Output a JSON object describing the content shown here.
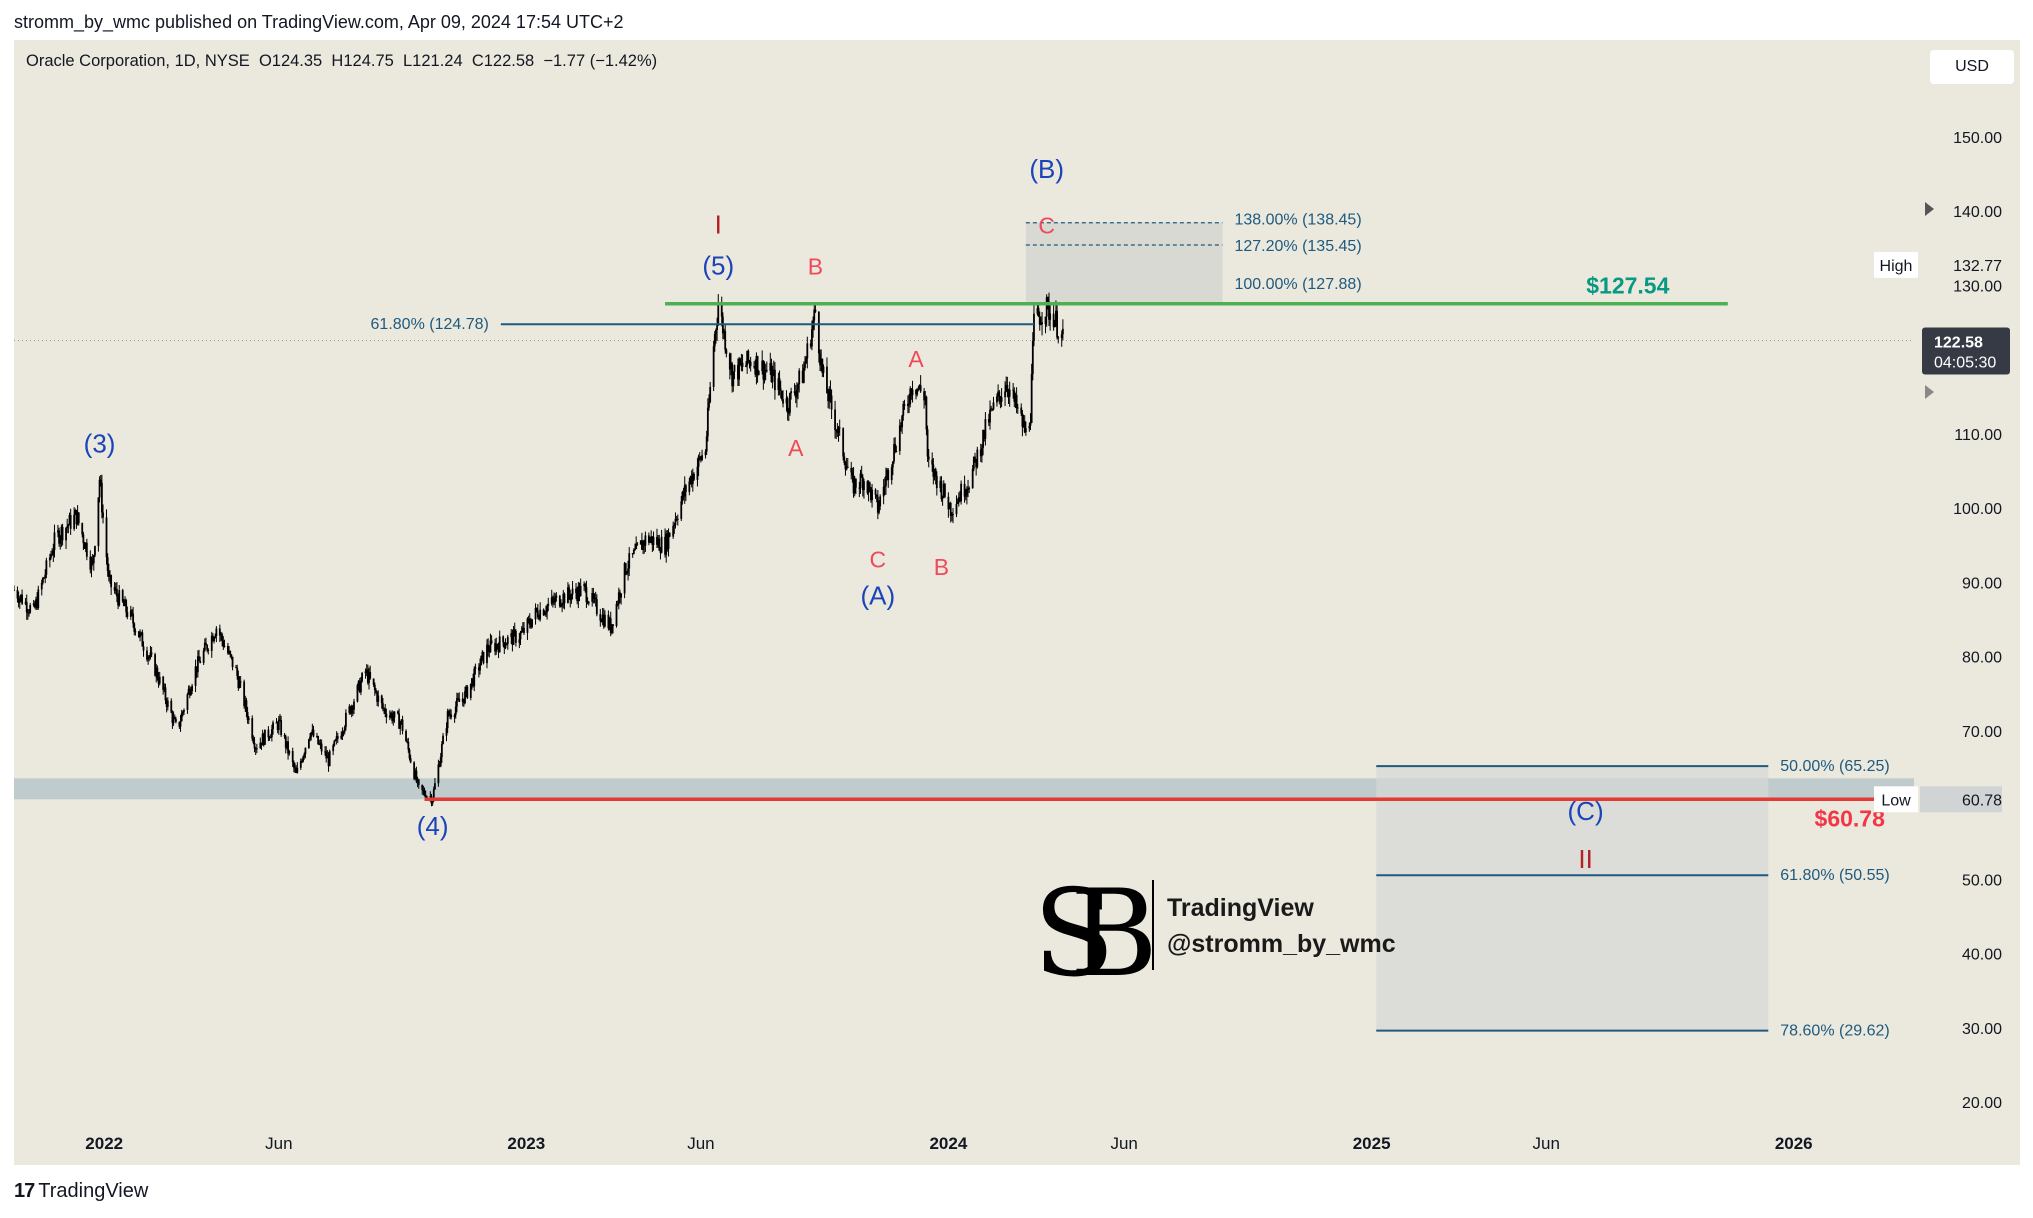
{
  "header": {
    "published_text": "stromm_by_wmc published on TradingView.com, Apr 09, 2024 17:54 UTC+2"
  },
  "legend": {
    "symbol": "Oracle Corporation, 1D, NYSE",
    "open": "O124.35",
    "high": "H124.75",
    "low": "L121.24",
    "close": "C122.58",
    "change": "−1.77 (−1.42%)"
  },
  "currency_button": "USD",
  "footer": {
    "brand": "TradingView",
    "brand_mark": "17"
  },
  "colors": {
    "background": "#ebe8de",
    "candle": "#000000",
    "wave_blue": "#1a44b8",
    "wave_red": "#f04a5a",
    "wave_darkred": "#b22222",
    "fib_line": "#1e5a7e",
    "green_line": "#4caf50",
    "red_line": "#e53935",
    "target_green": "#089981",
    "target_red": "#f23645"
  },
  "chart_data": {
    "type": "candlestick",
    "symbol": "ORCL",
    "timeframe": "1D",
    "x_range": [
      "2021-10-15",
      "2026-04-15"
    ],
    "ylim": [
      15,
      160
    ],
    "y_ticks": [
      20,
      30,
      40,
      50,
      60,
      70,
      80,
      90,
      100,
      110,
      130,
      140,
      150
    ],
    "y_tick_labels": [
      "20.00",
      "30.00",
      "40.00",
      "50.00",
      "60.00",
      "70.00",
      "80.00",
      "90.00",
      "100.00",
      "110.00",
      "130.00",
      "140.00",
      "150.00"
    ],
    "x_ticks": [
      {
        "date": "2022-01-01",
        "label": "2022",
        "bold": true
      },
      {
        "date": "2022-06-01",
        "label": "Jun",
        "bold": false
      },
      {
        "date": "2023-01-01",
        "label": "2023",
        "bold": true
      },
      {
        "date": "2023-06-01",
        "label": "Jun",
        "bold": false
      },
      {
        "date": "2024-01-01",
        "label": "2024",
        "bold": true
      },
      {
        "date": "2024-06-01",
        "label": "Jun",
        "bold": false
      },
      {
        "date": "2025-01-01",
        "label": "2025",
        "bold": true
      },
      {
        "date": "2025-06-01",
        "label": "Jun",
        "bold": false
      },
      {
        "date": "2026-01-01",
        "label": "2026",
        "bold": true
      }
    ],
    "price_path": [
      [
        "2021-10-15",
        89
      ],
      [
        "2021-11-01",
        86
      ],
      [
        "2021-11-20",
        96
      ],
      [
        "2021-12-08",
        99
      ],
      [
        "2021-12-22",
        92
      ],
      [
        "2021-12-28",
        104
      ],
      [
        "2022-01-05",
        90
      ],
      [
        "2022-01-25",
        85
      ],
      [
        "2022-02-15",
        78
      ],
      [
        "2022-03-05",
        70
      ],
      [
        "2022-03-20",
        78
      ],
      [
        "2022-04-08",
        84
      ],
      [
        "2022-04-25",
        78
      ],
      [
        "2022-05-12",
        68
      ],
      [
        "2022-06-01",
        71
      ],
      [
        "2022-06-16",
        64
      ],
      [
        "2022-06-28",
        70
      ],
      [
        "2022-07-14",
        66
      ],
      [
        "2022-07-30",
        72
      ],
      [
        "2022-08-15",
        78
      ],
      [
        "2022-08-30",
        73
      ],
      [
        "2022-09-15",
        71
      ],
      [
        "2022-09-30",
        62
      ],
      [
        "2022-10-12",
        61
      ],
      [
        "2022-10-25",
        72
      ],
      [
        "2022-11-10",
        75
      ],
      [
        "2022-11-28",
        81
      ],
      [
        "2022-12-12",
        82
      ],
      [
        "2022-12-28",
        83
      ],
      [
        "2023-01-10",
        86
      ],
      [
        "2023-02-01",
        88
      ],
      [
        "2023-02-20",
        89
      ],
      [
        "2023-03-05",
        86
      ],
      [
        "2023-03-15",
        84
      ],
      [
        "2023-03-28",
        92
      ],
      [
        "2023-04-15",
        96
      ],
      [
        "2023-05-01",
        95
      ],
      [
        "2023-05-20",
        103
      ],
      [
        "2023-06-05",
        108
      ],
      [
        "2023-06-12",
        122
      ],
      [
        "2023-06-16",
        127.5
      ],
      [
        "2023-06-28",
        118
      ],
      [
        "2023-07-15",
        120
      ],
      [
        "2023-08-01",
        118
      ],
      [
        "2023-08-15",
        114
      ],
      [
        "2023-08-28",
        118
      ],
      [
        "2023-09-08",
        126.5
      ],
      [
        "2023-09-14",
        118
      ],
      [
        "2023-09-28",
        110
      ],
      [
        "2023-10-10",
        103
      ],
      [
        "2023-10-20",
        104
      ],
      [
        "2023-11-01",
        100
      ],
      [
        "2023-11-15",
        108
      ],
      [
        "2023-12-01",
        117
      ],
      [
        "2023-12-12",
        115
      ],
      [
        "2023-12-14",
        106
      ],
      [
        "2023-12-22",
        104
      ],
      [
        "2024-01-03",
        100
      ],
      [
        "2024-01-20",
        104
      ],
      [
        "2024-02-05",
        112
      ],
      [
        "2024-02-20",
        117
      ],
      [
        "2024-03-01",
        113
      ],
      [
        "2024-03-08",
        110
      ],
      [
        "2024-03-12",
        113
      ],
      [
        "2024-03-15",
        125
      ],
      [
        "2024-03-25",
        127
      ],
      [
        "2024-04-01",
        126
      ],
      [
        "2024-04-09",
        122.58
      ]
    ],
    "wave_labels": [
      {
        "text": "(3)",
        "date": "2021-12-28",
        "price": 107.5,
        "color": "blue"
      },
      {
        "text": "(4)",
        "date": "2022-10-12",
        "price": 56,
        "color": "blue"
      },
      {
        "text": "(5)",
        "date": "2023-06-16",
        "price": 131.5,
        "color": "blue"
      },
      {
        "text": "I",
        "date": "2023-06-16",
        "price": 137,
        "color": "darkred"
      },
      {
        "text": "B",
        "date": "2023-09-08",
        "price": 131.5,
        "color": "red"
      },
      {
        "text": "A",
        "date": "2023-08-22",
        "price": 107,
        "color": "red"
      },
      {
        "text": "C",
        "date": "2023-11-01",
        "price": 92,
        "color": "red"
      },
      {
        "text": "(A)",
        "date": "2023-11-01",
        "price": 87,
        "color": "blue"
      },
      {
        "text": "A",
        "date": "2023-12-04",
        "price": 119,
        "color": "red"
      },
      {
        "text": "B",
        "date": "2023-12-26",
        "price": 91,
        "color": "red"
      },
      {
        "text": "C",
        "date": "2024-03-26",
        "price": 137,
        "color": "red"
      },
      {
        "text": "(B)",
        "date": "2024-03-26",
        "price": 144.5,
        "color": "blue"
      },
      {
        "text": "(C)",
        "date": "2025-07-05",
        "price": 58,
        "color": "blue"
      },
      {
        "text": "II",
        "date": "2025-07-05",
        "price": 51.5,
        "color": "darkred"
      }
    ],
    "fib_levels": [
      {
        "label": "138.00% (138.45)",
        "price": 138.45,
        "style": "dashed"
      },
      {
        "label": "127.20% (135.45)",
        "price": 135.45,
        "style": "dashed"
      },
      {
        "label": "100.00% (127.88)",
        "price": 127.88,
        "style": "none"
      },
      {
        "label": "61.80% (124.78)",
        "price": 124.78,
        "style": "solid"
      },
      {
        "label": "50.00% (65.25)",
        "price": 65.25,
        "style": "solid"
      },
      {
        "label": "61.80% (50.55)",
        "price": 50.55,
        "style": "solid"
      },
      {
        "label": "78.60% (29.62)",
        "price": 29.62,
        "style": "solid"
      }
    ],
    "fib_left_range": {
      "start": "2022-12-10",
      "end": "2024-03-15"
    },
    "fib_upper_box": {
      "start": "2024-03-08",
      "end": "2024-08-25",
      "top": 138.45,
      "bottom": 127.5
    },
    "fib_lower_box": {
      "start": "2025-01-05",
      "end": "2025-12-10",
      "top": 65.25,
      "bottom": 29.62
    },
    "support_zone": {
      "start": "2021-10-15",
      "end": "2026-04-15",
      "top": 63.6,
      "bottom": 60.78
    },
    "horizontal_lines": [
      {
        "name": "resistance",
        "price": 127.54,
        "start": "2023-05-01",
        "end": "2025-11-05",
        "color": "green",
        "label": "$127.54"
      },
      {
        "name": "support",
        "price": 60.78,
        "start": "2022-10-05",
        "end": "2026-03-25",
        "color": "red",
        "label": "$60.78"
      }
    ],
    "current_price": {
      "value": "122.58",
      "countdown": "04:05:30"
    },
    "high_marker": {
      "label": "High",
      "value": "132.77",
      "price": 132.77
    },
    "low_marker": {
      "label": "Low",
      "value": "60.78",
      "price": 60.78
    },
    "watermark": {
      "line1": "TradingView",
      "line2": "@stromm_by_wmc"
    }
  }
}
